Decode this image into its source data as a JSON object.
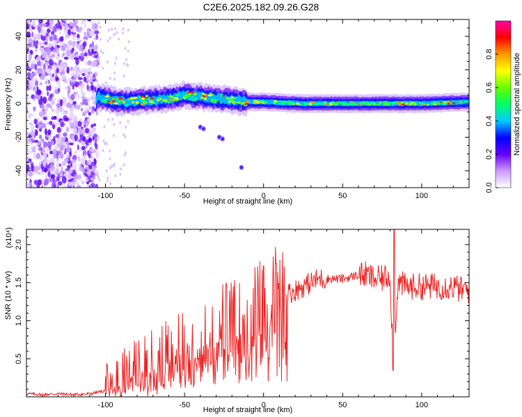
{
  "title": "C2E6.2025.182.09.26.G28",
  "chart_data": [
    {
      "type": "heatmap",
      "xlabel": "Height of straight line (km)",
      "ylabel": "Frequency (Hz)",
      "xlim": [
        -150,
        130
      ],
      "ylim": [
        -50,
        50
      ],
      "x_ticks": [
        -100,
        -50,
        0,
        50,
        100
      ],
      "y_ticks": [
        -40,
        -20,
        0,
        20,
        40
      ],
      "colorbar": {
        "label": "Normalized spectral amplitude",
        "range": [
          0.0,
          1.0
        ],
        "ticks": [
          "0.0",
          "0.2",
          "0.4",
          "0.6",
          "0.8"
        ],
        "colors": [
          "#ffffff",
          "#cc99ff",
          "#6600ff",
          "#0000ff",
          "#00ccff",
          "#00ff66",
          "#66ff00",
          "#ffff00",
          "#ff9900",
          "#ff0000",
          "#ff00aa"
        ]
      },
      "features": {
        "noise_region_x": [
          -150,
          -105
        ],
        "band_center_hz": [
          {
            "x": -105,
            "y": 4
          },
          {
            "x": -90,
            "y": 1
          },
          {
            "x": -75,
            "y": 2
          },
          {
            "x": -60,
            "y": 3
          },
          {
            "x": -50,
            "y": 5
          },
          {
            "x": -40,
            "y": 4
          },
          {
            "x": -30,
            "y": 3
          },
          {
            "x": -20,
            "y": 2
          },
          {
            "x": -10,
            "y": 1
          },
          {
            "x": 0,
            "y": 1
          },
          {
            "x": 25,
            "y": 0
          },
          {
            "x": 50,
            "y": 0
          },
          {
            "x": 75,
            "y": 0
          },
          {
            "x": 100,
            "y": 0
          },
          {
            "x": 130,
            "y": 1
          }
        ],
        "trace_points": [
          {
            "x": -40,
            "y": -14
          },
          {
            "x": -38,
            "y": -15
          },
          {
            "x": -28,
            "y": -20
          },
          {
            "x": -26,
            "y": -21
          },
          {
            "x": -14,
            "y": -38
          }
        ]
      }
    },
    {
      "type": "line",
      "xlabel": "Height of straight line (km)",
      "ylabel": "SNR (10 * v/v)",
      "y_multiplier": "(x10⁴)",
      "xlim": [
        -150,
        130
      ],
      "ylim": [
        0,
        2.2
      ],
      "x_ticks": [
        -100,
        -50,
        0,
        50,
        100
      ],
      "y_ticks": [
        "0.5",
        "1.0",
        "1.5",
        "2.0"
      ],
      "color": "#ee2222",
      "x": [
        -150,
        -140,
        -130,
        -120,
        -110,
        -100,
        -95,
        -90,
        -85,
        -80,
        -75,
        -70,
        -65,
        -60,
        -55,
        -50,
        -45,
        -40,
        -35,
        -30,
        -25,
        -20,
        -15,
        -10,
        -5,
        0,
        5,
        10,
        15,
        20,
        25,
        30,
        35,
        40,
        50,
        60,
        65,
        70,
        75,
        80,
        82,
        85,
        90,
        95,
        100,
        105,
        110,
        115,
        120,
        125,
        130
      ],
      "y": [
        0.04,
        0.03,
        0.04,
        0.03,
        0.04,
        0.08,
        0.15,
        0.25,
        0.3,
        0.35,
        0.4,
        0.45,
        0.5,
        0.6,
        0.65,
        0.7,
        0.75,
        0.8,
        0.85,
        0.9,
        0.95,
        0.95,
        1.0,
        1.05,
        1.15,
        1.25,
        1.3,
        1.35,
        1.35,
        1.4,
        1.45,
        1.5,
        1.55,
        1.55,
        1.55,
        1.6,
        1.6,
        1.55,
        1.55,
        1.6,
        0.5,
        1.5,
        1.45,
        1.45,
        1.45,
        1.45,
        1.45,
        1.45,
        1.45,
        1.4,
        1.4
      ]
    }
  ]
}
